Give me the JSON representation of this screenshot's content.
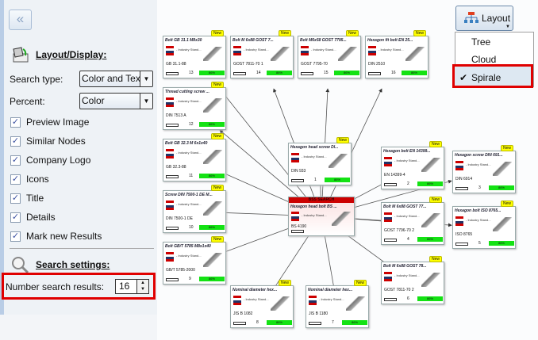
{
  "left_panel": {
    "collapse_icon": "double-chevron-left",
    "layout_section": {
      "title": "Layout/Display:",
      "icon": "paint-bucket-icon"
    },
    "search_type": {
      "label": "Search type:",
      "value": "Color and Text"
    },
    "percent": {
      "label": "Percent:",
      "value": "Color"
    },
    "checkboxes": [
      {
        "label": "Preview Image",
        "checked": true
      },
      {
        "label": "Similar Nodes",
        "checked": true
      },
      {
        "label": "Company Logo",
        "checked": true
      },
      {
        "label": "Icons",
        "checked": true
      },
      {
        "label": "Title",
        "checked": true
      },
      {
        "label": "Details",
        "checked": true
      },
      {
        "label": "Mark new Results",
        "checked": true
      }
    ],
    "search_section": {
      "title": "Search settings:",
      "icon": "magnifier-icon"
    },
    "number_results": {
      "label": "Number search results:",
      "value": "16"
    }
  },
  "layout_button": {
    "label": "Layout",
    "icon": "hierarchy-icon"
  },
  "layout_menu": {
    "items": [
      {
        "label": "Tree",
        "checked": false
      },
      {
        "label": "Cloud",
        "checked": false
      },
      {
        "label": "Spirale",
        "checked": true
      }
    ]
  },
  "graph": {
    "manufacturer": "- Industry Stand...",
    "new_label": "New",
    "percent_label": "86%",
    "unit": "mm",
    "center": {
      "header": "BSS SEARCH",
      "title": "Hexagon head bolt BS ...",
      "std": "BS 4190"
    },
    "nodes": [
      {
        "n": "1",
        "title": "Hexagon head screw DI...",
        "std": "DIN 933"
      },
      {
        "n": "2",
        "title": "Hexagon bolt EN 14399...",
        "std": "EN 14399-4"
      },
      {
        "n": "3",
        "title": "Hexagon screw DIN 691...",
        "std": "DIN 6914"
      },
      {
        "n": "4",
        "title": "Bolt M 6x88 GOST 77...",
        "std": "GOST 7796-70 2"
      },
      {
        "n": "5",
        "title": "Hexagon bolt ISO 8765...",
        "std": "ISO 8765"
      },
      {
        "n": "6",
        "title": "Bolt M 6x88 GOST 78...",
        "std": "GOST 7811-70 2"
      },
      {
        "n": "7",
        "title": "Nominal diameter hex...",
        "std": "JIS B 1180"
      },
      {
        "n": "8",
        "title": "Nominal diameter hex...",
        "std": "JIS B 1082"
      },
      {
        "n": "9",
        "title": "Bolt GB/T 5785 M8x1x40",
        "std": "GB/T 5785-2000"
      },
      {
        "n": "10",
        "title": "Screw DIN 7500-1 DE M...",
        "std": "DIN 7500-1 DE"
      },
      {
        "n": "11",
        "title": "Bolt GB 32.3 M 6x1x40",
        "std": "GB 32.3-88"
      },
      {
        "n": "12",
        "title": "Thread cutting screw ...",
        "std": "DIN 7513 A"
      },
      {
        "n": "13",
        "title": "Bolt GB 31.1 M8x30",
        "std": "GB 31.1-88"
      },
      {
        "n": "14",
        "title": "Bolt M 6x88 GOST 7...",
        "std": "GOST 7811-70 1"
      },
      {
        "n": "15",
        "title": "Bolt M6x58 GOST 7795...",
        "std": "GOST 7795-70"
      },
      {
        "n": "16",
        "title": "Hexagon fit bolt EN 25...",
        "std": "DIN 2510"
      }
    ]
  }
}
